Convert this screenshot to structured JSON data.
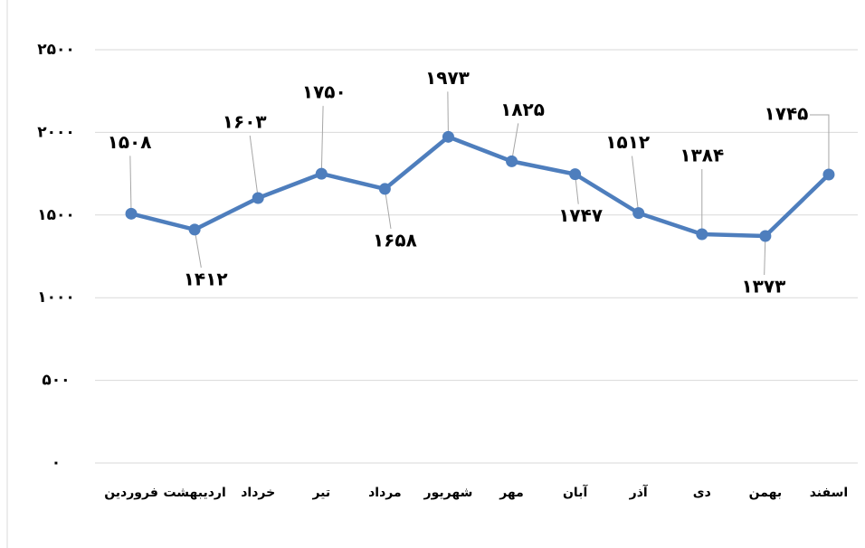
{
  "chart_data": {
    "type": "line",
    "categories": [
      "فروردین",
      "اردیبهشت",
      "خرداد",
      "تیر",
      "مرداد",
      "شهریور",
      "مهر",
      "آبان",
      "آذر",
      "دی",
      "بهمن",
      "اسفند"
    ],
    "series": [
      {
        "color": "#4e7ebd",
        "values": [
          1508,
          1412,
          1603,
          1750,
          1658,
          1973,
          1825,
          1747,
          1512,
          1384,
          1373,
          1745
        ],
        "value_labels": [
          "۱۵۰۸",
          "۱۴۱۲",
          "۱۶۰۳",
          "۱۷۵۰",
          "۱۶۵۸",
          "۱۹۷۳",
          "۱۸۲۵",
          "۱۷۴۷",
          "۱۵۱۲",
          "۱۳۸۴",
          "۱۳۷۳",
          "۱۷۴۵"
        ]
      }
    ],
    "ylim": [
      0,
      2500
    ],
    "yticks": [
      {
        "value": 0,
        "label": "۰"
      },
      {
        "value": 500,
        "label": "۵۰۰"
      },
      {
        "value": 1000,
        "label": "۱۰۰۰"
      },
      {
        "value": 1500,
        "label": "۱۵۰۰"
      },
      {
        "value": 2000,
        "label": "۲۰۰۰"
      },
      {
        "value": 2500,
        "label": "۲۵۰۰"
      }
    ],
    "grid": true
  }
}
